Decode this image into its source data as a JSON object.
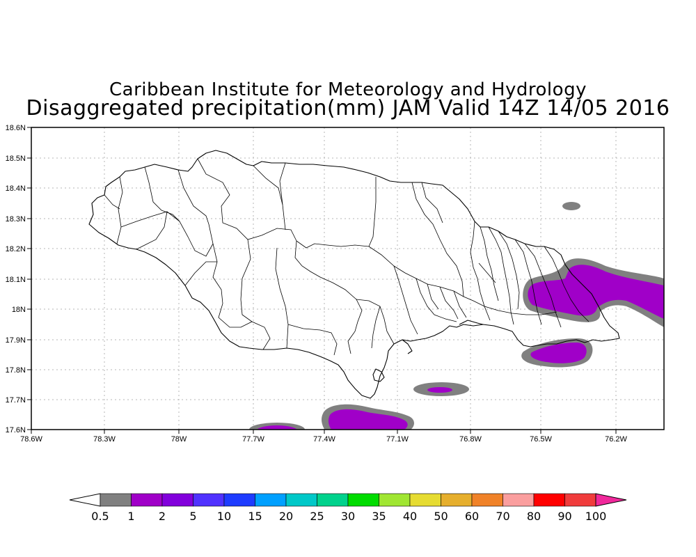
{
  "title": {
    "line1": "Caribbean Institute for Meteorology and Hydrology",
    "line2": "Disaggregated precipitation(mm) JAM Valid 14Z 14/05 2016"
  },
  "axes": {
    "lon_ticks": [
      "78.6W",
      "78.3W",
      "78W",
      "77.7W",
      "77.4W",
      "77.1W",
      "76.8W",
      "76.5W",
      "76.2W"
    ],
    "lat_ticks": [
      "18.6N",
      "18.5N",
      "18.4N",
      "18.3N",
      "18.2N",
      "18.1N",
      "18N",
      "17.9N",
      "17.8N",
      "17.7N",
      "17.6N"
    ],
    "lon_range": [
      -78.6,
      -76.1
    ],
    "lat_range": [
      17.6,
      18.6
    ]
  },
  "colorbar": {
    "labels": [
      "0.5",
      "1",
      "2",
      "5",
      "10",
      "15",
      "20",
      "25",
      "30",
      "35",
      "40",
      "50",
      "60",
      "70",
      "80",
      "90",
      "100"
    ],
    "colors": [
      "#808080",
      "#a000c8",
      "#8200dc",
      "#5032ff",
      "#1e3cff",
      "#00a0ff",
      "#00c8c8",
      "#00d28c",
      "#00dc00",
      "#a0e632",
      "#e6dc32",
      "#e6af2d",
      "#f08228",
      "#fa9e9e",
      "#ff0000",
      "#f03c3c",
      "#f000a0"
    ],
    "underflow_color": "#ffffff",
    "overflow_color": "#f0289b"
  },
  "precip_colors": {
    "light": "#808080",
    "moderate": "#a000c8",
    "heavy": "#8200dc"
  }
}
